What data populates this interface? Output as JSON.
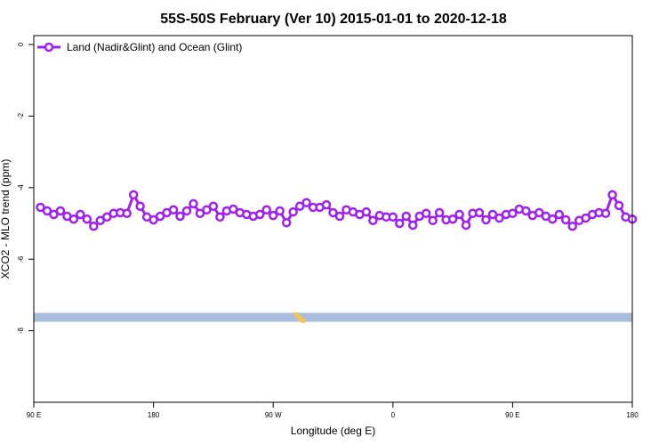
{
  "chart_data": {
    "type": "line",
    "title": "55S-50S February (Ver 10)   2015-01-01 to 2020-12-18",
    "xlabel": "Longitude (deg E)",
    "ylabel": "XCO2 - MLO trend (ppm)",
    "x_ticks": [
      {
        "pos": 0,
        "label": "90 E"
      },
      {
        "pos": 90,
        "label": "180"
      },
      {
        "pos": 180,
        "label": "90 W"
      },
      {
        "pos": 270,
        "label": "0"
      },
      {
        "pos": 360,
        "label": "90 E"
      },
      {
        "pos": 450,
        "label": "180"
      }
    ],
    "xlim": [
      0,
      450
    ],
    "y_ticks": [
      0,
      -2,
      -4,
      -6,
      -8
    ],
    "ylim": [
      -10,
      0.25
    ],
    "grid": false,
    "legend_position": "top-left",
    "series": [
      {
        "name": "Land (Nadir&Glint) and Ocean (Glint)",
        "color": "#A020F0",
        "x": [
          5,
          10,
          15,
          20,
          25,
          30,
          35,
          40,
          45,
          50,
          55,
          60,
          65,
          70,
          75,
          80,
          85,
          90,
          95,
          100,
          105,
          110,
          115,
          120,
          125,
          130,
          135,
          140,
          145,
          150,
          155,
          160,
          165,
          170,
          175,
          180,
          185,
          190,
          195,
          200,
          205,
          210,
          215,
          220,
          225,
          230,
          235,
          240,
          245,
          250,
          255,
          260,
          265,
          270,
          275,
          280,
          285,
          290,
          295,
          300,
          305,
          310,
          315,
          320,
          325,
          330,
          335,
          340,
          345,
          350,
          355,
          360,
          365,
          370,
          375,
          380,
          385,
          390,
          395,
          400,
          405,
          410,
          415,
          420,
          425,
          430,
          435,
          440,
          445,
          450
        ],
        "values": [
          -4.55,
          -4.65,
          -4.75,
          -4.65,
          -4.8,
          -4.88,
          -4.75,
          -4.88,
          -5.08,
          -4.92,
          -4.82,
          -4.72,
          -4.7,
          -4.72,
          -4.2,
          -4.52,
          -4.82,
          -4.9,
          -4.8,
          -4.7,
          -4.62,
          -4.8,
          -4.65,
          -4.45,
          -4.72,
          -4.62,
          -4.52,
          -4.82,
          -4.65,
          -4.6,
          -4.7,
          -4.75,
          -4.8,
          -4.75,
          -4.62,
          -4.78,
          -4.65,
          -4.98,
          -4.68,
          -4.52,
          -4.42,
          -4.55,
          -4.55,
          -4.48,
          -4.7,
          -4.8,
          -4.62,
          -4.68,
          -4.75,
          -4.68,
          -4.92,
          -4.78,
          -4.82,
          -4.82,
          -5.0,
          -4.8,
          -5.05,
          -4.8,
          -4.72,
          -4.92,
          -4.7,
          -4.9,
          -4.88,
          -4.75,
          -5.05,
          -4.72,
          -4.7,
          -4.9,
          -4.75,
          -4.85,
          -4.75,
          -4.72,
          -4.6,
          -4.65,
          -4.78,
          -4.7,
          -4.8,
          -4.88,
          -4.75,
          -4.9,
          -5.08,
          -4.92,
          -4.85,
          -4.75,
          -4.7,
          -4.72,
          -4.2,
          -4.5,
          -4.82,
          -4.88
        ]
      }
    ],
    "band": {
      "y_from": -7.75,
      "y_to": -7.5,
      "color": "#A9BCDB",
      "accent_color": "#F5C451",
      "accent_points": [
        {
          "x": 197.5,
          "y": -7.55
        },
        {
          "x": 199.5,
          "y": -7.62
        },
        {
          "x": 200.8,
          "y": -7.68
        },
        {
          "x": 202.5,
          "y": -7.72
        }
      ]
    }
  }
}
